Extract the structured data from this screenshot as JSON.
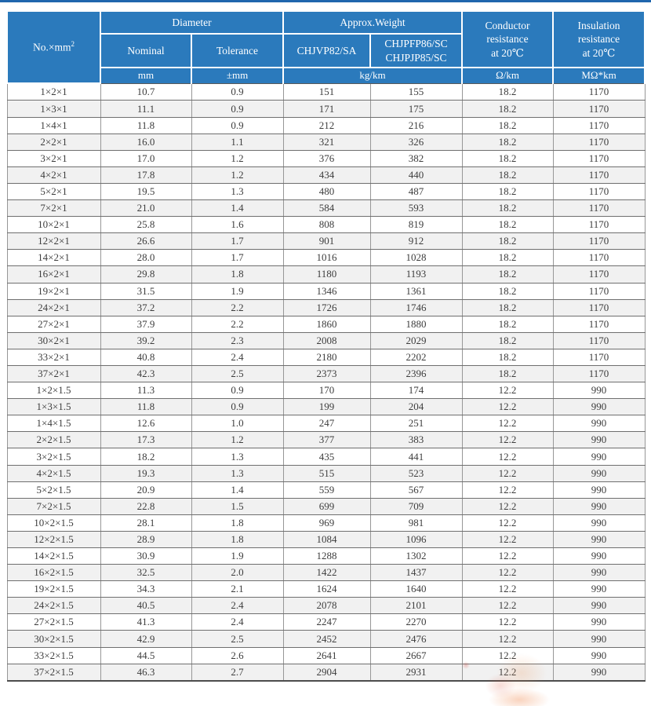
{
  "page": {
    "accent_blue": "#2b7abc",
    "topline_blue": "#2066ad",
    "stripe_gray": "#f1f1f1",
    "watermark": "faint-orange-logo"
  },
  "table": {
    "headers": {
      "no_label": "No.×mm",
      "no_label_sup": "2",
      "diameter": "Diameter",
      "weight": "Approx.Weight",
      "nominal": "Nominal",
      "tolerance": "Tolerance",
      "weight_col1": "CHJVP82/SA",
      "weight_col2_line1": "CHJPFP86/SC",
      "weight_col2_line2": "CHJPJP85/SC",
      "conductor_lines": [
        "Conductor",
        "resistance",
        "at 20℃"
      ],
      "insulation_lines": [
        "Insulation",
        "resistance",
        "at 20℃"
      ]
    },
    "units": {
      "mm": "mm",
      "tolerance_mm": "±mm",
      "kg_km": "kg/km",
      "ohm_km": "Ω/km",
      "mohm_km": "MΩ*km"
    },
    "rows": [
      [
        "1×2×1",
        "10.7",
        "0.9",
        "151",
        "155",
        "18.2",
        "1170"
      ],
      [
        "1×3×1",
        "11.1",
        "0.9",
        "171",
        "175",
        "18.2",
        "1170"
      ],
      [
        "1×4×1",
        "11.8",
        "0.9",
        "212",
        "216",
        "18.2",
        "1170"
      ],
      [
        "2×2×1",
        "16.0",
        "1.1",
        "321",
        "326",
        "18.2",
        "1170"
      ],
      [
        "3×2×1",
        "17.0",
        "1.2",
        "376",
        "382",
        "18.2",
        "1170"
      ],
      [
        "4×2×1",
        "17.8",
        "1.2",
        "434",
        "440",
        "18.2",
        "1170"
      ],
      [
        "5×2×1",
        "19.5",
        "1.3",
        "480",
        "487",
        "18.2",
        "1170"
      ],
      [
        "7×2×1",
        "21.0",
        "1.4",
        "584",
        "593",
        "18.2",
        "1170"
      ],
      [
        "10×2×1",
        "25.8",
        "1.6",
        "808",
        "819",
        "18.2",
        "1170"
      ],
      [
        "12×2×1",
        "26.6",
        "1.7",
        "901",
        "912",
        "18.2",
        "1170"
      ],
      [
        "14×2×1",
        "28.0",
        "1.7",
        "1016",
        "1028",
        "18.2",
        "1170"
      ],
      [
        "16×2×1",
        "29.8",
        "1.8",
        "1180",
        "1193",
        "18.2",
        "1170"
      ],
      [
        "19×2×1",
        "31.5",
        "1.9",
        "1346",
        "1361",
        "18.2",
        "1170"
      ],
      [
        "24×2×1",
        "37.2",
        "2.2",
        "1726",
        "1746",
        "18.2",
        "1170"
      ],
      [
        "27×2×1",
        "37.9",
        "2.2",
        "1860",
        "1880",
        "18.2",
        "1170"
      ],
      [
        "30×2×1",
        "39.2",
        "2.3",
        "2008",
        "2029",
        "18.2",
        "1170"
      ],
      [
        "33×2×1",
        "40.8",
        "2.4",
        "2180",
        "2202",
        "18.2",
        "1170"
      ],
      [
        "37×2×1",
        "42.3",
        "2.5",
        "2373",
        "2396",
        "18.2",
        "1170"
      ],
      [
        "1×2×1.5",
        "11.3",
        "0.9",
        "170",
        "174",
        "12.2",
        "990"
      ],
      [
        "1×3×1.5",
        "11.8",
        "0.9",
        "199",
        "204",
        "12.2",
        "990"
      ],
      [
        "1×4×1.5",
        "12.6",
        "1.0",
        "247",
        "251",
        "12.2",
        "990"
      ],
      [
        "2×2×1.5",
        "17.3",
        "1.2",
        "377",
        "383",
        "12.2",
        "990"
      ],
      [
        "3×2×1.5",
        "18.2",
        "1.3",
        "435",
        "441",
        "12.2",
        "990"
      ],
      [
        "4×2×1.5",
        "19.3",
        "1.3",
        "515",
        "523",
        "12.2",
        "990"
      ],
      [
        "5×2×1.5",
        "20.9",
        "1.4",
        "559",
        "567",
        "12.2",
        "990"
      ],
      [
        "7×2×1.5",
        "22.8",
        "1.5",
        "699",
        "709",
        "12.2",
        "990"
      ],
      [
        "10×2×1.5",
        "28.1",
        "1.8",
        "969",
        "981",
        "12.2",
        "990"
      ],
      [
        "12×2×1.5",
        "28.9",
        "1.8",
        "1084",
        "1096",
        "12.2",
        "990"
      ],
      [
        "14×2×1.5",
        "30.9",
        "1.9",
        "1288",
        "1302",
        "12.2",
        "990"
      ],
      [
        "16×2×1.5",
        "32.5",
        "2.0",
        "1422",
        "1437",
        "12.2",
        "990"
      ],
      [
        "19×2×1.5",
        "34.3",
        "2.1",
        "1624",
        "1640",
        "12.2",
        "990"
      ],
      [
        "24×2×1.5",
        "40.5",
        "2.4",
        "2078",
        "2101",
        "12.2",
        "990"
      ],
      [
        "27×2×1.5",
        "41.3",
        "2.4",
        "2247",
        "2270",
        "12.2",
        "990"
      ],
      [
        "30×2×1.5",
        "42.9",
        "2.5",
        "2452",
        "2476",
        "12.2",
        "990"
      ],
      [
        "33×2×1.5",
        "44.5",
        "2.6",
        "2641",
        "2667",
        "12.2",
        "990"
      ],
      [
        "37×2×1.5",
        "46.3",
        "2.7",
        "2904",
        "2931",
        "12.2",
        "990"
      ]
    ]
  }
}
